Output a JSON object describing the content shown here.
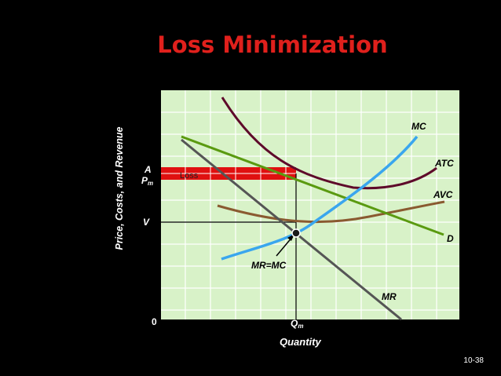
{
  "slide": {
    "title": "Loss Minimization",
    "page_number": "10-38"
  },
  "diagram": {
    "y_axis_label": "Price, Costs, and Revenue",
    "x_axis_label": "Quantity",
    "origin_label": "0",
    "price_labels": {
      "a": "A",
      "pm": "P",
      "pm_sub": "m",
      "v": "V"
    },
    "quantity_label": "Q",
    "quantity_sub": "m",
    "loss_label": "Loss",
    "equilibrium_label": "MR=MC",
    "curves": {
      "mc": "MC",
      "atc": "ATC",
      "avc": "AVC",
      "demand": "D",
      "mr": "MR"
    },
    "colors": {
      "plot_background": "#d8f2c8",
      "grid": "#ffffff",
      "mc": "#3aa6ee",
      "atc": "#5e0a2a",
      "avc": "#8a5a30",
      "demand": "#5a9a10",
      "mr": "#555555",
      "loss_area": "#e01010",
      "title": "#e0201c"
    }
  }
}
